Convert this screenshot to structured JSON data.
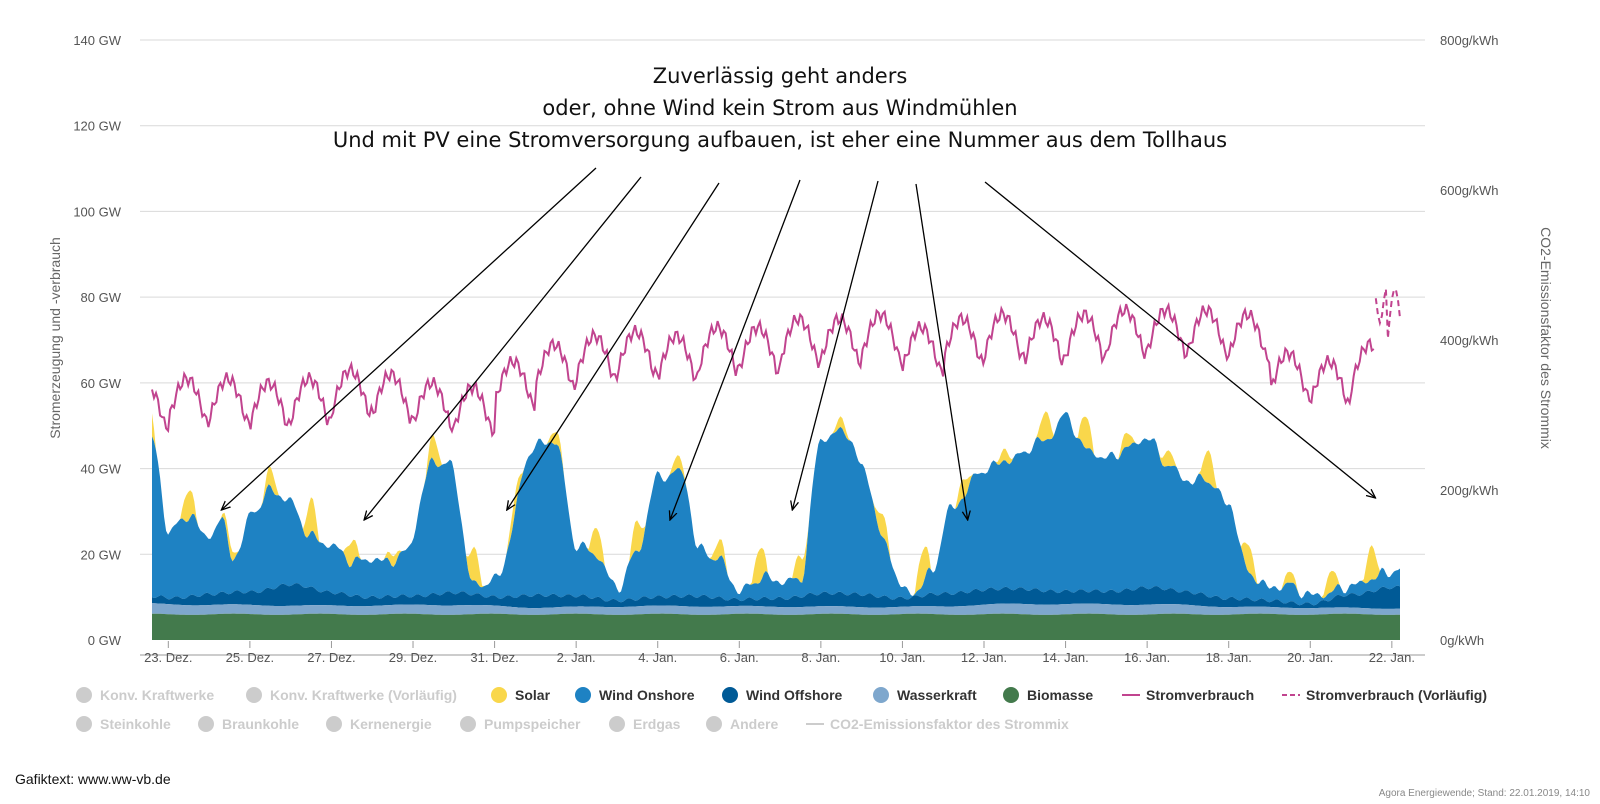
{
  "chart_data": {
    "type": "area",
    "title": "Zuverlässig geht anders",
    "subtitle": [
      "oder, ohne Wind kein Strom aus Windmühlen",
      "Und mit PV eine Stromversorgung aufbauen, ist eher eine Nummer aus dem Tollhaus"
    ],
    "ylabel": "Stromerzeugung und -verbrauch",
    "y2label": "CO2-Emissionsfaktor des Strommix",
    "ylim": [
      0,
      140
    ],
    "y2lim": [
      0,
      800
    ],
    "y_ticks": [
      "0 GW",
      "20 GW",
      "40 GW",
      "60 GW",
      "80 GW",
      "100 GW",
      "120 GW",
      "140 GW"
    ],
    "y2_ticks": [
      "0g/kWh",
      "200g/kWh",
      "400g/kWh",
      "600g/kWh",
      "800g/kWh"
    ],
    "x_ticks": [
      "23. Dez.",
      "25. Dez.",
      "27. Dez.",
      "29. Dez.",
      "31. Dez.",
      "2. Jan.",
      "4. Jan.",
      "6. Jan.",
      "8. Jan.",
      "10. Jan.",
      "12. Jan.",
      "14. Jan.",
      "16. Jan.",
      "18. Jan.",
      "20. Jan.",
      "22. Jan."
    ],
    "x_tick_days": [
      1,
      3,
      5,
      7,
      9,
      11,
      13,
      15,
      17,
      19,
      21,
      23,
      25,
      27,
      29,
      31
    ],
    "x_days_range": [
      0.6,
      31.2
    ],
    "grid": true,
    "legend_position": "bottom",
    "series": [
      {
        "name": "Biomasse",
        "color": "#437a4c",
        "unit": "GW",
        "days": [
          0,
          31
        ],
        "values": [
          6,
          6
        ]
      },
      {
        "name": "Wasserkraft",
        "color": "#7ea7cd",
        "unit": "GW",
        "days": [
          0,
          2,
          5,
          8,
          10,
          13,
          16,
          19,
          22,
          25,
          28,
          31
        ],
        "values": [
          2.5,
          2.2,
          2.0,
          2.2,
          1.6,
          1.9,
          1.8,
          1.7,
          2.4,
          2.3,
          1.6,
          1.4
        ]
      },
      {
        "name": "Wind Offshore",
        "color": "#005a96",
        "unit": "GW",
        "days": [
          0,
          1,
          2,
          3,
          4,
          5,
          6,
          7,
          8,
          9,
          10,
          11,
          12,
          13,
          14,
          15,
          16,
          17,
          18,
          19,
          20,
          21,
          22,
          23,
          24,
          25,
          26,
          27,
          28,
          29,
          30,
          31
        ],
        "values": [
          2,
          1.5,
          2.5,
          3,
          5,
          3,
          2,
          2,
          3,
          2,
          3,
          2.5,
          1.5,
          2,
          2.5,
          1.5,
          2,
          3,
          3,
          2,
          3,
          3.5,
          3.5,
          3,
          3,
          4,
          3,
          2,
          1.5,
          1,
          3,
          5
        ]
      },
      {
        "name": "Wind Onshore",
        "color": "#1e82c3",
        "unit": "GW",
        "days": [
          0.6,
          1.0,
          1.6,
          1.9,
          2.3,
          2.6,
          3.1,
          3.5,
          3.9,
          4.5,
          5.0,
          5.5,
          6.0,
          6.4,
          6.8,
          7.5,
          7.9,
          8.5,
          9.0,
          10.0,
          10.5,
          11.0,
          11.5,
          12.0,
          12.5,
          13.0,
          13.6,
          14.0,
          14.5,
          15.0,
          15.6,
          16.0,
          16.5,
          17.0,
          17.6,
          18.0,
          18.6,
          19.0,
          19.3,
          19.7,
          20.2,
          21.0,
          21.6,
          22.5,
          23.0,
          23.5,
          24.0,
          24.5,
          25.0,
          25.5,
          26.0,
          26.5,
          27.0,
          27.5,
          28.0,
          28.5,
          29.0,
          29.5,
          30.0,
          30.5,
          31.2
        ],
        "values": [
          37,
          16,
          19,
          13,
          17,
          8,
          19,
          23,
          20,
          12,
          11,
          8,
          9,
          8,
          10,
          31,
          30,
          2,
          4,
          35,
          36,
          12,
          10,
          3,
          11,
          28,
          29,
          11,
          9,
          2,
          5,
          4,
          4,
          36,
          38,
          30,
          12,
          2,
          1,
          5,
          20,
          28,
          30,
          35,
          41,
          33,
          31,
          33,
          35,
          29,
          26,
          27,
          22,
          6,
          3,
          4,
          2,
          1.5,
          2,
          3,
          4
        ]
      },
      {
        "name": "Solar",
        "color": "#f9d74b",
        "unit": "GW",
        "days": [],
        "values": []
      },
      {
        "name": "Stromverbrauch",
        "color": "#c1448f",
        "unit": "GW",
        "days": [
          0.6,
          30.6
        ],
        "values": []
      },
      {
        "name": "Stromverbrauch (Vorläufig)",
        "color": "#c1448f",
        "dashed": true,
        "unit": "GW",
        "days": [
          30.6,
          31.2
        ],
        "values": []
      }
    ]
  },
  "legend": {
    "row1": [
      {
        "label": "Konv. Kraftwerke",
        "color": "#cccccc",
        "marker": "dot",
        "active": false
      },
      {
        "label": "Konv. Kraftwerke (Vorläufig)",
        "color": "#cccccc",
        "marker": "dot",
        "active": false
      },
      {
        "label": "Solar",
        "color": "#f9d74b",
        "marker": "dot",
        "active": true
      },
      {
        "label": "Wind Onshore",
        "color": "#1e82c3",
        "marker": "dot",
        "active": true
      },
      {
        "label": "Wind Offshore",
        "color": "#005a96",
        "marker": "dot",
        "active": true
      },
      {
        "label": "Wasserkraft",
        "color": "#7ea7cd",
        "marker": "dot",
        "active": true
      },
      {
        "label": "Biomasse",
        "color": "#437a4c",
        "marker": "dot",
        "active": true
      },
      {
        "label": "Stromverbrauch",
        "color": "#c1448f",
        "marker": "line",
        "active": true
      },
      {
        "label": "Stromverbrauch (Vorläufig)",
        "color": "#c1448f",
        "marker": "dash",
        "active": true
      }
    ],
    "row2": [
      {
        "label": "Steinkohle",
        "color": "#cccccc",
        "marker": "dot",
        "active": false
      },
      {
        "label": "Braunkohle",
        "color": "#cccccc",
        "marker": "dot",
        "active": false
      },
      {
        "label": "Kernenergie",
        "color": "#cccccc",
        "marker": "dot",
        "active": false
      },
      {
        "label": "Pumpspeicher",
        "color": "#cccccc",
        "marker": "dot",
        "active": false
      },
      {
        "label": "Erdgas",
        "color": "#cccccc",
        "marker": "dot",
        "active": false
      },
      {
        "label": "Andere",
        "color": "#cccccc",
        "marker": "dot",
        "active": false
      },
      {
        "label": "CO2-Emissionsfaktor des Strommix",
        "color": "#cccccc",
        "marker": "line",
        "active": false
      }
    ]
  },
  "footer": {
    "credit": "Gafiktext: www.ww-vb.de",
    "source": "Agora Energiewende; Stand: 22.01.2019, 14:10"
  },
  "annotation_arrow_targets_days": [
    2.3,
    5.8,
    9.3,
    13.3,
    16.3,
    20.6,
    30.6
  ]
}
